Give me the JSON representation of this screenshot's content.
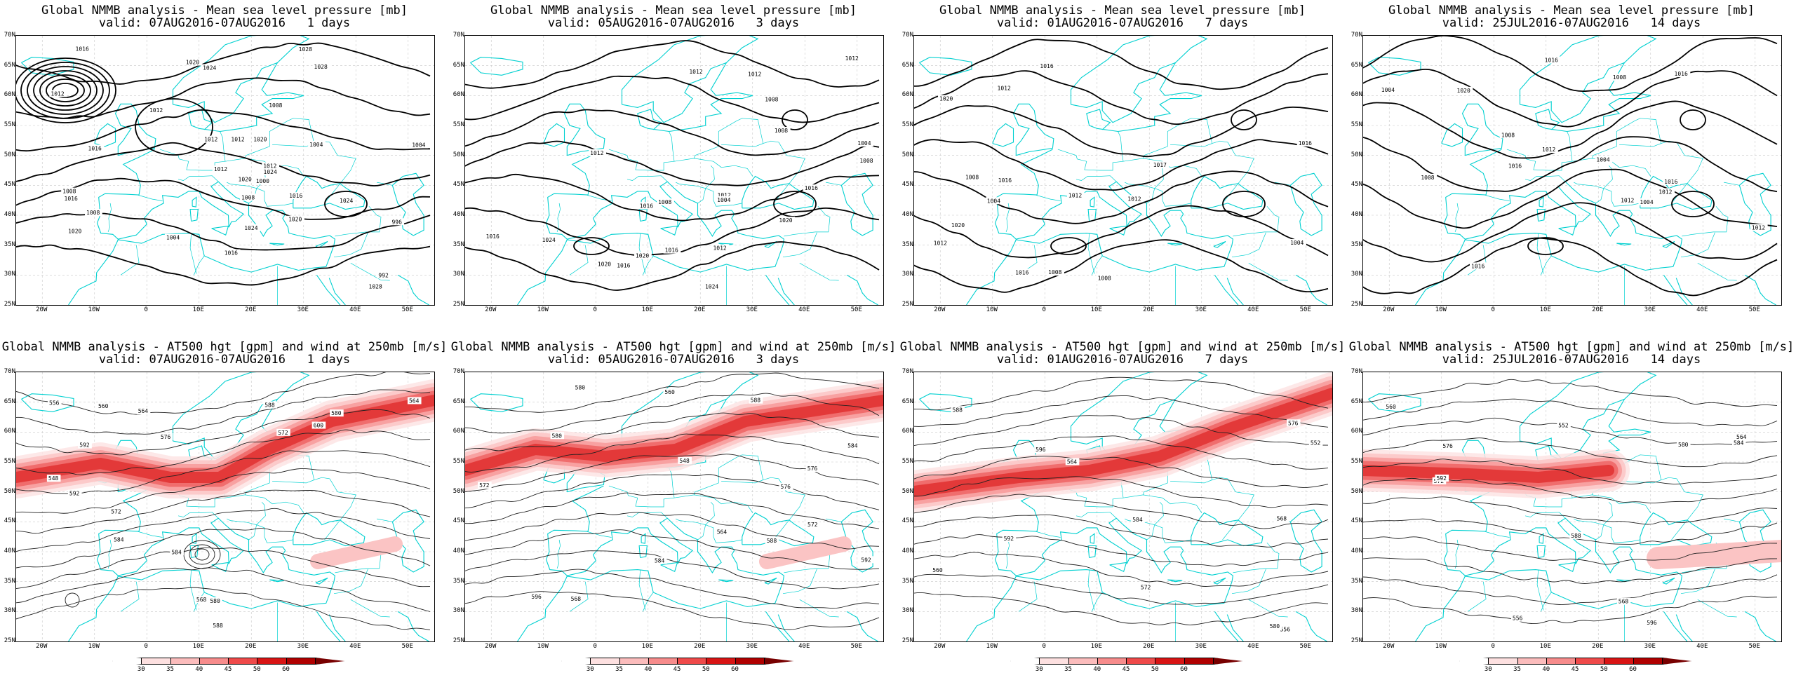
{
  "panels": [
    {
      "id": "mslp-1d",
      "type": "mslp",
      "title": "Global NMMB analysis - Mean sea level pressure [mb]",
      "valid": "valid: 07AUG2016-07AUG2016   1 days",
      "contour_labels": [
        "1008",
        "1012",
        "996",
        "992",
        "1000",
        "1004",
        "1008",
        "1012",
        "1016",
        "1020",
        "1024",
        "1028",
        "1024",
        "1028",
        "1020",
        "1016",
        "1012",
        "1024",
        "1020",
        "1016",
        "1012",
        "1008",
        "1004",
        "1016",
        "1020",
        "1024",
        "1028",
        "1016",
        "1012",
        "1008",
        "1004",
        "1020",
        "1012"
      ]
    },
    {
      "id": "mslp-3d",
      "type": "mslp",
      "title": "Global NMMB analysis - Mean sea level pressure [mb]",
      "valid": "valid: 05AUG2016-07AUG2016   3 days",
      "contour_labels": [
        "1012",
        "1008",
        "1012",
        "1016",
        "1020",
        "1024",
        "1020",
        "1016",
        "1012",
        "1016",
        "1020",
        "1024",
        "1016",
        "1012",
        "1008",
        "1004",
        "1016",
        "1012",
        "1008",
        "1004",
        "1012",
        "1008"
      ]
    },
    {
      "id": "mslp-7d",
      "type": "mslp",
      "title": "Global NMMB analysis - Mean sea level pressure [mb]",
      "valid": "valid: 01AUG2016-07AUG2016   7 days",
      "contour_labels": [
        "1008",
        "1012",
        "1016",
        "1020",
        "1020",
        "1016",
        "1012",
        "1008",
        "1004",
        "1016",
        "1012",
        "1017",
        "1016",
        "1012",
        "1008",
        "1004"
      ]
    },
    {
      "id": "mslp-14d",
      "type": "mslp",
      "title": "Global NMMB analysis - Mean sea level pressure [mb]",
      "valid": "valid: 25JUL2016-07AUG2016   14 days",
      "contour_labels": [
        "1004",
        "1008",
        "1012",
        "1012",
        "1016",
        "1016",
        "1016",
        "1020",
        "1016",
        "1012",
        "1008",
        "1004",
        "1016",
        "1012",
        "1008",
        "1004"
      ]
    },
    {
      "id": "z500-1d",
      "type": "z500",
      "title": "Global NMMB analysis - AT500 hgt [gpm] and wind at 250mb [m/s]",
      "valid": "valid: 07AUG2016-07AUG2016   1 days",
      "contour_labels": [
        "548",
        "556",
        "564",
        "572",
        "580",
        "584",
        "588",
        "592",
        "600",
        "560",
        "564",
        "568",
        "572",
        "576",
        "580",
        "584",
        "588",
        "592"
      ]
    },
    {
      "id": "z500-3d",
      "type": "z500",
      "title": "Global NMMB analysis - AT500 hgt [gpm] and wind at 250mb [m/s]",
      "valid": "valid: 05AUG2016-07AUG2016   3 days",
      "contour_labels": [
        "548",
        "560",
        "572",
        "576",
        "580",
        "584",
        "588",
        "592",
        "596",
        "564",
        "568",
        "572",
        "576",
        "580",
        "584",
        "588"
      ]
    },
    {
      "id": "z500-7d",
      "type": "z500",
      "title": "Global NMMB analysis - AT500 hgt [gpm] and wind at 250mb [m/s]",
      "valid": "valid: 01AUG2016-07AUG2016   7 days",
      "contour_labels": [
        "552",
        "556",
        "560",
        "564",
        "568",
        "572",
        "576",
        "580",
        "584",
        "588",
        "592",
        "596"
      ]
    },
    {
      "id": "z500-14d",
      "type": "z500",
      "title": "Global NMMB analysis - AT500 hgt [gpm] and wind at 250mb [m/s]",
      "valid": "valid: 25JUL2016-07AUG2016   14 days",
      "contour_labels": [
        "552",
        "556",
        "560",
        "564",
        "568",
        "572",
        "576",
        "580",
        "584",
        "588",
        "592",
        "596"
      ]
    }
  ],
  "axes": {
    "lat_labels": [
      "70N",
      "65N",
      "60N",
      "55N",
      "50N",
      "45N",
      "40N",
      "35N",
      "30N",
      "25N"
    ],
    "lon_labels": [
      "20W",
      "10W",
      "0",
      "10E",
      "20E",
      "30E",
      "40E",
      "50E"
    ]
  },
  "colorbar": {
    "ticks": [
      "30",
      "35",
      "40",
      "45",
      "50",
      "60"
    ],
    "colors": [
      "#ffffff",
      "#fde0e0",
      "#fbbcbc",
      "#f78c8c",
      "#ef4a4a",
      "#d81414",
      "#b00000",
      "#780000"
    ]
  },
  "colors": {
    "coast": "#00d0d0",
    "contour": "#000000",
    "jet": "#e83030"
  }
}
